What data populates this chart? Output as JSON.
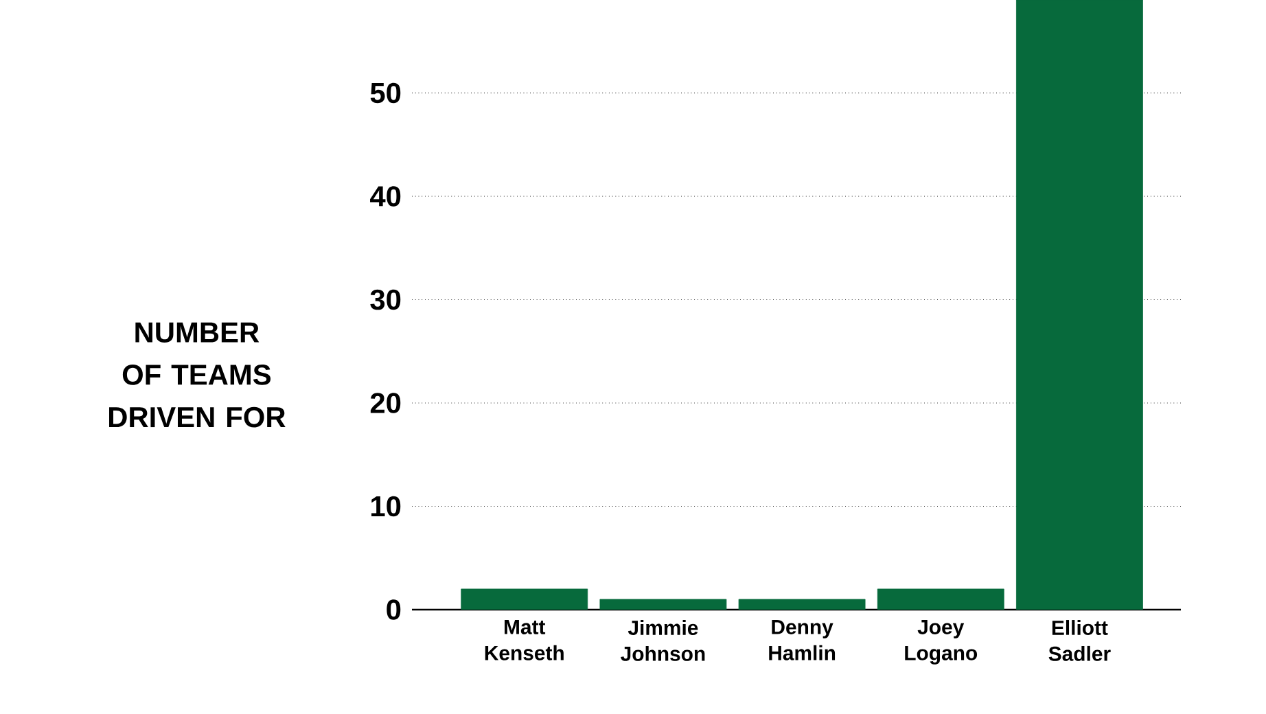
{
  "chart_data": {
    "type": "bar",
    "ylabel": "NUMBER OF TEAMS DRIVEN FOR",
    "categories": [
      "Matt Kenseth",
      "Jimmie Johnson",
      "Denny Hamlin",
      "Joey Logano",
      "Elliott Sadler"
    ],
    "values": [
      2,
      1,
      1,
      2,
      59
    ],
    "color": "#076a3c",
    "ylim": [
      0,
      59
    ],
    "yticks": [
      0,
      10,
      20,
      30,
      40,
      50
    ],
    "grid": "y"
  }
}
